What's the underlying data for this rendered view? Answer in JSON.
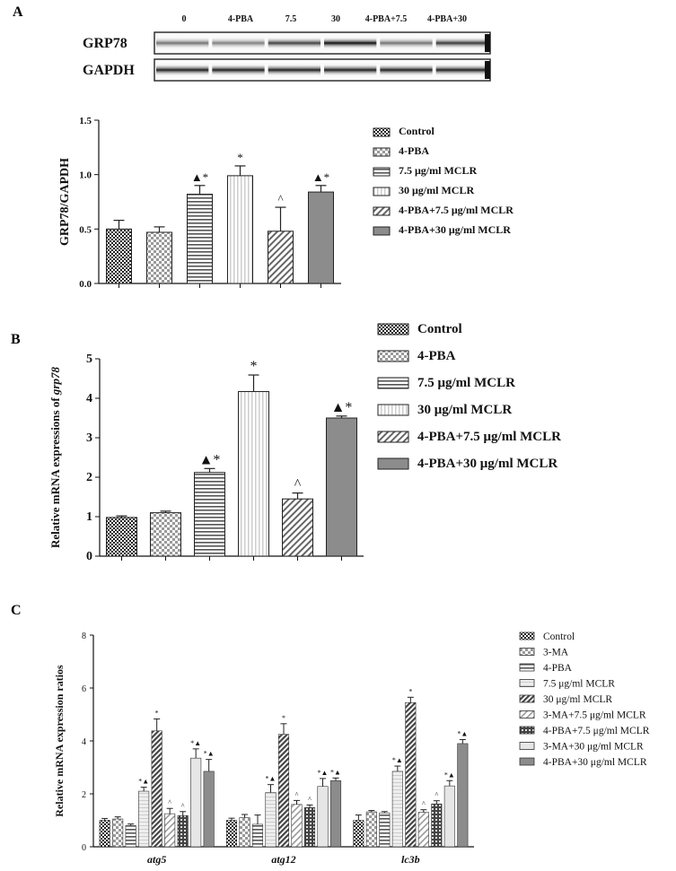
{
  "panels": {
    "A": {
      "letter": "A",
      "blot": {
        "lane_labels": [
          "0",
          "4-PBA",
          "7.5",
          "30",
          "4-PBA+7.5",
          "4-PBA+30"
        ],
        "rows": [
          {
            "label": "GRP78",
            "intensity": [
              0.55,
              0.5,
              0.75,
              0.95,
              0.55,
              0.8
            ]
          },
          {
            "label": "GAPDH",
            "intensity": [
              0.9,
              0.9,
              0.9,
              0.9,
              0.9,
              0.9
            ]
          }
        ]
      },
      "chart_data": {
        "type": "bar",
        "ylabel": "GRP78/GAPDH",
        "xlabel": "",
        "ylim": [
          0,
          1.5
        ],
        "yticks": [
          "0.0",
          "0.5",
          "1.0",
          "1.5"
        ],
        "legend_position": "right",
        "series": [
          {
            "name": "Control",
            "value": 0.5,
            "err": 0.08,
            "mark": "",
            "pattern": "checker-dark"
          },
          {
            "name": "4-PBA",
            "value": 0.47,
            "err": 0.05,
            "mark": "",
            "pattern": "checker-light"
          },
          {
            "name": "7.5 μg/ml MCLR",
            "value": 0.82,
            "err": 0.08,
            "mark": "▲*",
            "pattern": "hlines"
          },
          {
            "name": "30 μg/ml MCLR",
            "value": 0.99,
            "err": 0.09,
            "mark": "*",
            "pattern": "vlines-light"
          },
          {
            "name": "4-PBA+7.5 μg/ml MCLR",
            "value": 0.48,
            "err": 0.22,
            "mark": "^",
            "pattern": "diag"
          },
          {
            "name": "4-PBA+30 μg/ml MCLR",
            "value": 0.84,
            "err": 0.06,
            "mark": "▲*",
            "pattern": "solid-gray"
          }
        ]
      }
    },
    "B": {
      "letter": "B",
      "chart_data": {
        "type": "bar",
        "ylabel_parts": [
          "Relative mRNA expressions of ",
          "grp78"
        ],
        "xlabel": "",
        "ylim": [
          0,
          5
        ],
        "yticks": [
          "0",
          "1",
          "2",
          "3",
          "4",
          "5"
        ],
        "legend_position": "right",
        "series": [
          {
            "name": "Control",
            "value": 0.98,
            "err": 0.04,
            "mark": "",
            "pattern": "checker-dark"
          },
          {
            "name": "4-PBA",
            "value": 1.1,
            "err": 0.04,
            "mark": "",
            "pattern": "checker-light"
          },
          {
            "name": "7.5 μg/ml MCLR",
            "value": 2.12,
            "err": 0.1,
            "mark": "▲*",
            "pattern": "hlines"
          },
          {
            "name": "30 μg/ml MCLR",
            "value": 4.17,
            "err": 0.42,
            "mark": "*",
            "pattern": "vlines-light"
          },
          {
            "name": "4-PBA+7.5 μg/ml MCLR",
            "value": 1.45,
            "err": 0.15,
            "mark": "^",
            "pattern": "diag"
          },
          {
            "name": "4-PBA+30 μg/ml MCLR",
            "value": 3.5,
            "err": 0.05,
            "mark": "▲*",
            "pattern": "solid-gray"
          }
        ]
      }
    },
    "C": {
      "letter": "C",
      "chart_data": {
        "type": "bar",
        "ylabel": "Relative mRNA expression ratios",
        "xlabel": "",
        "ylim": [
          0,
          8
        ],
        "yticks": [
          "0",
          "2",
          "4",
          "6",
          "8"
        ],
        "categories": [
          "atg5",
          "atg12",
          "lc3b"
        ],
        "legend_position": "right",
        "series": [
          {
            "name": "Control",
            "pattern": "checker-dark",
            "values": [
              1.0,
              1.0,
              1.0
            ],
            "errs": [
              0.07,
              0.08,
              0.2
            ],
            "marks": [
              "",
              "",
              ""
            ]
          },
          {
            "name": "3-MA",
            "pattern": "checker-light",
            "values": [
              1.05,
              1.1,
              1.32
            ],
            "errs": [
              0.08,
              0.12,
              0.05
            ],
            "marks": [
              "",
              "",
              ""
            ]
          },
          {
            "name": "4-PBA",
            "pattern": "hlines",
            "values": [
              0.8,
              0.85,
              1.28
            ],
            "errs": [
              0.06,
              0.35,
              0.05
            ],
            "marks": [
              "",
              "",
              ""
            ]
          },
          {
            "name": "7.5 μg/ml MCLR",
            "pattern": "light-solid",
            "values": [
              2.1,
              2.05,
              2.85
            ],
            "errs": [
              0.15,
              0.3,
              0.2
            ],
            "marks": [
              "*▲",
              "*▲",
              "*▲"
            ]
          },
          {
            "name": "30 μg/ml MCLR",
            "pattern": "diag-dark",
            "values": [
              4.38,
              4.25,
              5.45
            ],
            "errs": [
              0.45,
              0.4,
              0.2
            ],
            "marks": [
              "*",
              "*",
              "*"
            ]
          },
          {
            "name": "3-MA+7.5 μg/ml MCLR",
            "pattern": "diag-light",
            "values": [
              1.25,
              1.6,
              1.3
            ],
            "errs": [
              0.2,
              0.15,
              0.1
            ],
            "marks": [
              "^",
              "^",
              "^"
            ]
          },
          {
            "name": "4-PBA+7.5 μg/ml MCLR",
            "pattern": "grid",
            "values": [
              1.18,
              1.48,
              1.62
            ],
            "errs": [
              0.15,
              0.1,
              0.12
            ],
            "marks": [
              "^",
              "^",
              "^"
            ]
          },
          {
            "name": "3-MA+30 μg/ml MCLR",
            "pattern": "pale",
            "values": [
              3.35,
              2.28,
              2.3
            ],
            "errs": [
              0.35,
              0.3,
              0.2
            ],
            "marks": [
              "*▲",
              "*▲",
              "*▲"
            ]
          },
          {
            "name": "4-PBA+30 μg/ml MCLR",
            "pattern": "solid-gray",
            "values": [
              2.85,
              2.5,
              3.9
            ],
            "errs": [
              0.45,
              0.1,
              0.15
            ],
            "marks": [
              "*▲",
              "*▲",
              "*▲"
            ]
          }
        ]
      }
    }
  }
}
